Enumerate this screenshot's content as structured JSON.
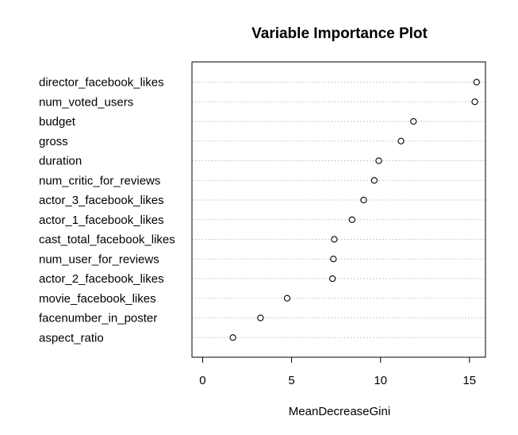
{
  "chart_data": {
    "type": "scatter",
    "title": "Variable Importance Plot",
    "xlabel": "MeanDecreaseGini",
    "ylabel": "",
    "xlim": [
      -0.6,
      15.9
    ],
    "xticks": [
      0,
      5,
      10,
      15
    ],
    "grid": true,
    "categories": [
      "director_facebook_likes",
      "num_voted_users",
      "budget",
      "gross",
      "duration",
      "num_critic_for_reviews",
      "actor_3_facebook_likes",
      "actor_1_facebook_likes",
      "cast_total_facebook_likes",
      "num_user_for_reviews",
      "actor_2_facebook_likes",
      "movie_facebook_likes",
      "facenumber_in_poster",
      "aspect_ratio"
    ],
    "values": [
      15.4,
      15.3,
      11.85,
      11.15,
      9.9,
      9.65,
      9.05,
      8.4,
      7.4,
      7.35,
      7.3,
      4.75,
      3.25,
      1.7
    ]
  }
}
